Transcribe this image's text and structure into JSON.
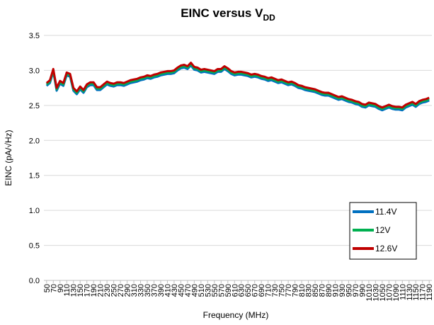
{
  "chart_data": {
    "type": "line",
    "title": {
      "text": "EINC versus V",
      "subscript": "DD"
    },
    "x_label": "Frequency (MHz)",
    "y_label": "EINC (pA/√Hz)",
    "x": [
      50,
      60,
      70,
      80,
      90,
      100,
      110,
      120,
      130,
      140,
      150,
      160,
      170,
      180,
      190,
      200,
      210,
      220,
      230,
      240,
      250,
      260,
      270,
      280,
      290,
      300,
      310,
      320,
      330,
      340,
      350,
      360,
      370,
      380,
      390,
      400,
      410,
      420,
      430,
      440,
      450,
      460,
      470,
      480,
      490,
      500,
      510,
      520,
      530,
      540,
      550,
      560,
      570,
      580,
      590,
      600,
      610,
      620,
      630,
      640,
      650,
      660,
      670,
      680,
      690,
      700,
      710,
      720,
      730,
      740,
      750,
      760,
      770,
      780,
      790,
      800,
      810,
      820,
      830,
      840,
      850,
      860,
      870,
      880,
      890,
      900,
      910,
      920,
      930,
      940,
      950,
      960,
      970,
      980,
      990,
      1000,
      1010,
      1020,
      1030,
      1040,
      1050,
      1060,
      1070,
      1080,
      1090,
      1100,
      1110,
      1120,
      1130,
      1140,
      1150,
      1160,
      1170,
      1180,
      1190
    ],
    "series": [
      {
        "name": "11.4V",
        "color": "#0070c0",
        "values": [
          2.78,
          2.82,
          2.98,
          2.71,
          2.81,
          2.78,
          2.93,
          2.91,
          2.71,
          2.66,
          2.73,
          2.68,
          2.76,
          2.79,
          2.79,
          2.72,
          2.72,
          2.76,
          2.8,
          2.78,
          2.77,
          2.79,
          2.79,
          2.78,
          2.8,
          2.82,
          2.83,
          2.84,
          2.86,
          2.87,
          2.89,
          2.88,
          2.9,
          2.91,
          2.93,
          2.94,
          2.95,
          2.95,
          2.96,
          3.0,
          3.03,
          3.04,
          3.02,
          3.07,
          3.01,
          3.0,
          2.97,
          2.98,
          2.97,
          2.96,
          2.95,
          2.98,
          2.98,
          3.02,
          2.99,
          2.95,
          2.93,
          2.94,
          2.94,
          2.93,
          2.92,
          2.9,
          2.91,
          2.9,
          2.88,
          2.87,
          2.85,
          2.86,
          2.84,
          2.82,
          2.83,
          2.81,
          2.79,
          2.8,
          2.78,
          2.75,
          2.74,
          2.72,
          2.71,
          2.7,
          2.69,
          2.67,
          2.65,
          2.64,
          2.64,
          2.62,
          2.6,
          2.58,
          2.59,
          2.57,
          2.55,
          2.54,
          2.52,
          2.51,
          2.48,
          2.47,
          2.5,
          2.49,
          2.48,
          2.45,
          2.43,
          2.45,
          2.47,
          2.45,
          2.44,
          2.44,
          2.43,
          2.47,
          2.49,
          2.51,
          2.48,
          2.52,
          2.54,
          2.55,
          2.57
        ]
      },
      {
        "name": "12V",
        "color": "#00b050",
        "values": [
          2.8,
          2.84,
          3.0,
          2.73,
          2.83,
          2.8,
          2.95,
          2.93,
          2.73,
          2.68,
          2.75,
          2.7,
          2.78,
          2.81,
          2.81,
          2.74,
          2.74,
          2.78,
          2.82,
          2.8,
          2.79,
          2.81,
          2.81,
          2.8,
          2.82,
          2.84,
          2.85,
          2.86,
          2.88,
          2.89,
          2.91,
          2.9,
          2.92,
          2.93,
          2.95,
          2.96,
          2.97,
          2.97,
          2.98,
          3.02,
          3.05,
          3.06,
          3.04,
          3.09,
          3.03,
          3.02,
          2.99,
          3.0,
          2.99,
          2.98,
          2.97,
          3.0,
          3.0,
          3.04,
          3.01,
          2.97,
          2.95,
          2.96,
          2.96,
          2.95,
          2.94,
          2.92,
          2.93,
          2.92,
          2.9,
          2.89,
          2.87,
          2.88,
          2.86,
          2.84,
          2.85,
          2.83,
          2.81,
          2.82,
          2.8,
          2.77,
          2.76,
          2.74,
          2.73,
          2.72,
          2.71,
          2.69,
          2.67,
          2.66,
          2.66,
          2.64,
          2.62,
          2.6,
          2.61,
          2.59,
          2.57,
          2.56,
          2.54,
          2.53,
          2.5,
          2.49,
          2.52,
          2.51,
          2.5,
          2.47,
          2.45,
          2.47,
          2.49,
          2.47,
          2.46,
          2.46,
          2.45,
          2.49,
          2.51,
          2.53,
          2.5,
          2.54,
          2.56,
          2.57,
          2.59
        ]
      },
      {
        "name": "12.6V",
        "color": "#c00000",
        "values": [
          2.82,
          2.86,
          3.02,
          2.75,
          2.85,
          2.82,
          2.97,
          2.95,
          2.75,
          2.7,
          2.77,
          2.72,
          2.8,
          2.83,
          2.83,
          2.76,
          2.76,
          2.8,
          2.84,
          2.82,
          2.81,
          2.83,
          2.83,
          2.82,
          2.84,
          2.86,
          2.87,
          2.88,
          2.9,
          2.91,
          2.93,
          2.92,
          2.94,
          2.95,
          2.97,
          2.98,
          2.99,
          2.99,
          3.0,
          3.04,
          3.07,
          3.08,
          3.06,
          3.11,
          3.05,
          3.04,
          3.01,
          3.02,
          3.01,
          3.0,
          2.99,
          3.02,
          3.02,
          3.06,
          3.03,
          2.99,
          2.97,
          2.98,
          2.98,
          2.97,
          2.96,
          2.94,
          2.95,
          2.94,
          2.92,
          2.91,
          2.89,
          2.9,
          2.88,
          2.86,
          2.87,
          2.85,
          2.83,
          2.84,
          2.82,
          2.79,
          2.78,
          2.76,
          2.75,
          2.74,
          2.73,
          2.71,
          2.69,
          2.68,
          2.68,
          2.66,
          2.64,
          2.62,
          2.63,
          2.61,
          2.59,
          2.58,
          2.56,
          2.55,
          2.52,
          2.51,
          2.54,
          2.53,
          2.52,
          2.49,
          2.47,
          2.49,
          2.51,
          2.49,
          2.48,
          2.48,
          2.47,
          2.51,
          2.53,
          2.55,
          2.52,
          2.56,
          2.58,
          2.59,
          2.61
        ]
      }
    ],
    "xlim": [
      42,
      1198
    ],
    "xticks": [
      50,
      70,
      90,
      110,
      130,
      150,
      170,
      190,
      210,
      230,
      250,
      270,
      290,
      310,
      330,
      350,
      370,
      390,
      410,
      430,
      450,
      470,
      490,
      510,
      530,
      550,
      570,
      590,
      610,
      630,
      650,
      670,
      690,
      710,
      730,
      750,
      770,
      790,
      810,
      830,
      850,
      870,
      890,
      910,
      930,
      950,
      970,
      990,
      1010,
      1030,
      1050,
      1070,
      1090,
      1110,
      1130,
      1150,
      1170,
      1190
    ],
    "ylim": [
      0,
      3.5
    ],
    "yticks": [
      {
        "value": 0,
        "label": "0.0"
      },
      0.5,
      {
        "value": 1,
        "label": "1.0"
      },
      1.5,
      {
        "value": 2,
        "label": "2.0"
      },
      2.5,
      {
        "value": 3,
        "label": "3.0"
      },
      3.5
    ],
    "grid": true,
    "legend": "lower right"
  }
}
